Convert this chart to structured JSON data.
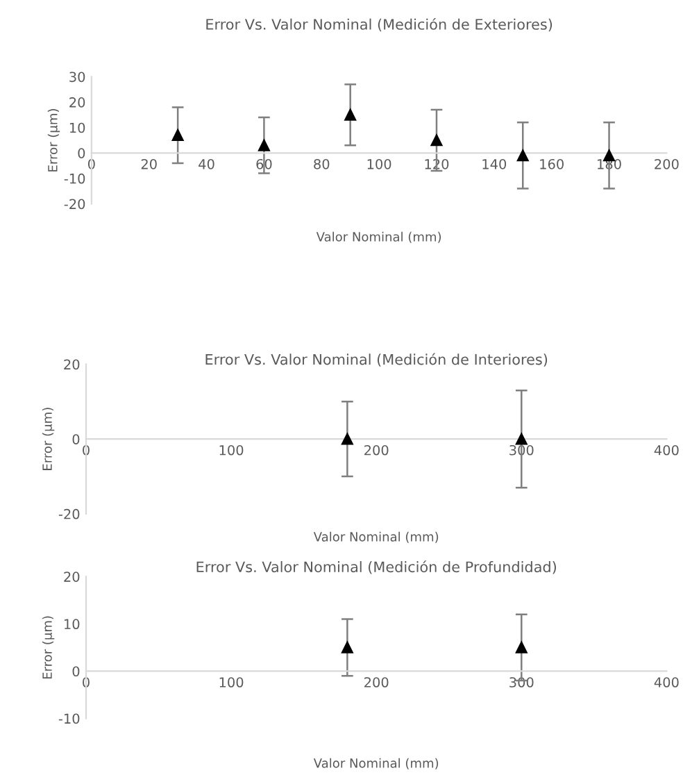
{
  "chart_data": [
    {
      "type": "scatter",
      "title": "Error Vs. Valor Nominal (Medición de Exteriores)",
      "xlabel": "Valor Nominal (mm)",
      "ylabel": "Error (µm)",
      "marker": "triangle",
      "grid": false,
      "legend": false,
      "series": [
        {
          "color": "#000000",
          "x": [
            30,
            60,
            90,
            120,
            150,
            180
          ],
          "values": [
            7,
            3,
            15,
            5,
            -1,
            -1
          ],
          "errors": [
            11,
            11,
            12,
            12,
            13,
            13
          ]
        }
      ],
      "xlim": [
        0,
        200
      ],
      "xticks": [
        0,
        20,
        40,
        60,
        80,
        100,
        120,
        140,
        160,
        180,
        200
      ],
      "ylim": [
        -20,
        30
      ],
      "yticks": [
        -20,
        -10,
        0,
        10,
        20,
        30
      ]
    },
    {
      "type": "scatter",
      "title": "Error Vs. Valor Nominal (Medición de Interiores)",
      "xlabel": "Valor Nominal (mm)",
      "ylabel": "Error (µm)",
      "marker": "triangle",
      "grid": false,
      "legend": false,
      "series": [
        {
          "color": "#000000",
          "x": [
            180,
            300
          ],
          "values": [
            0,
            0
          ],
          "errors": [
            10,
            13
          ]
        }
      ],
      "xlim": [
        0,
        400
      ],
      "xticks": [
        0,
        100,
        200,
        300,
        400
      ],
      "ylim": [
        -20,
        20
      ],
      "yticks": [
        -20,
        0,
        20
      ]
    },
    {
      "type": "scatter",
      "title": "Error Vs. Valor Nominal (Medición de Profundidad)",
      "xlabel": "Valor Nominal (mm)",
      "ylabel": "Error (µm)",
      "marker": "triangle",
      "grid": false,
      "legend": false,
      "series": [
        {
          "color": "#000000",
          "x": [
            180,
            300
          ],
          "values": [
            5,
            5
          ],
          "errors": [
            6,
            7
          ]
        }
      ],
      "xlim": [
        0,
        400
      ],
      "xticks": [
        0,
        100,
        200,
        300,
        400
      ],
      "ylim": [
        -10,
        20
      ],
      "yticks": [
        -10,
        0,
        10,
        20
      ]
    }
  ]
}
